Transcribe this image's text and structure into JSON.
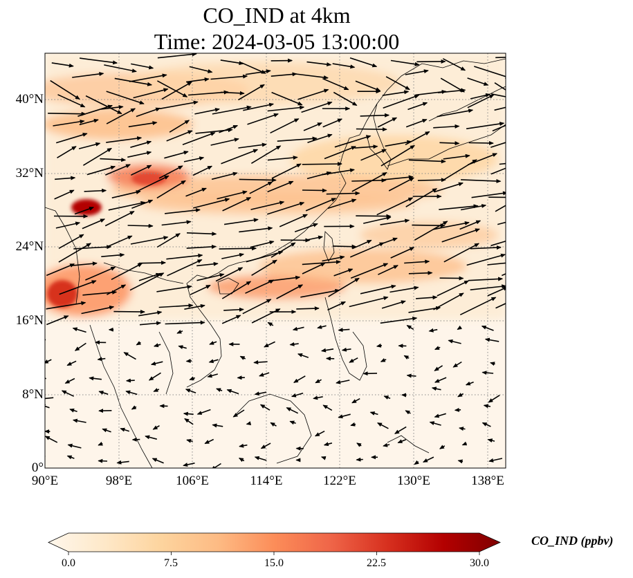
{
  "figure": {
    "title_line1": "CO_IND at 4km",
    "title_line2": "Time: 2024-03-05 13:00:00"
  },
  "map": {
    "projection": "PlateCarree",
    "lon_range": [
      90,
      140
    ],
    "lat_range": [
      0,
      45
    ],
    "gridlines": "dotted gray",
    "coastlines": true,
    "country_borders": true,
    "wind_vectors": true
  },
  "axes": {
    "x_ticks": [
      "90°E",
      "98°E",
      "106°E",
      "114°E",
      "122°E",
      "130°E",
      "138°E"
    ],
    "y_ticks": [
      "0°",
      "8°N",
      "16°N",
      "24°N",
      "32°N",
      "40°N"
    ]
  },
  "colorbar": {
    "label": "CO_IND (ppbv)",
    "colormap": "OrRd",
    "min": 0.0,
    "max": 30.0,
    "extend": "both",
    "ticks": [
      "0.0",
      "7.5",
      "15.0",
      "22.5",
      "30.0"
    ],
    "colors": [
      "#fff7ec",
      "#fee8c8",
      "#fdd49e",
      "#fdbb84",
      "#fc8d59",
      "#ef6548",
      "#d7301f",
      "#b30000",
      "#7f0000"
    ]
  }
}
